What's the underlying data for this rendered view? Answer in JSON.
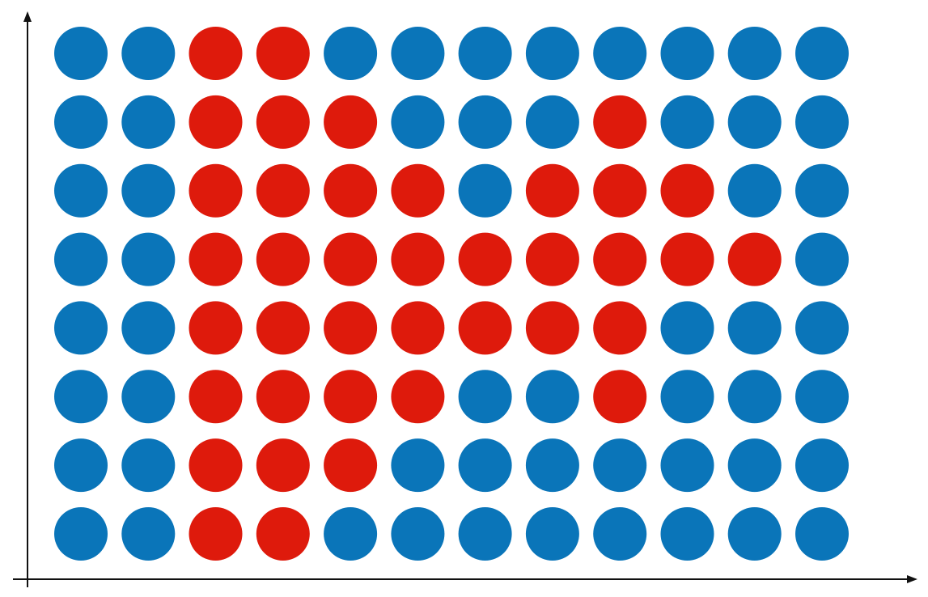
{
  "chart_data": {
    "type": "scatter",
    "title": "",
    "xlabel": "",
    "ylabel": "",
    "grid": false,
    "legend": "none",
    "colors": {
      "blue": "#0a75b9",
      "red": "#de1a0c",
      "axis": "#111111"
    },
    "rows_top_to_bottom": [
      [
        "blue",
        "blue",
        "red",
        "red",
        "blue",
        "blue",
        "blue",
        "blue",
        "blue",
        "blue",
        "blue",
        "blue"
      ],
      [
        "blue",
        "blue",
        "red",
        "red",
        "red",
        "blue",
        "blue",
        "blue",
        "red",
        "blue",
        "blue",
        "blue"
      ],
      [
        "blue",
        "blue",
        "red",
        "red",
        "red",
        "red",
        "blue",
        "red",
        "red",
        "red",
        "blue",
        "blue"
      ],
      [
        "blue",
        "blue",
        "red",
        "red",
        "red",
        "red",
        "red",
        "red",
        "red",
        "red",
        "red",
        "blue"
      ],
      [
        "blue",
        "blue",
        "red",
        "red",
        "red",
        "red",
        "red",
        "red",
        "red",
        "blue",
        "blue",
        "blue"
      ],
      [
        "blue",
        "blue",
        "red",
        "red",
        "red",
        "red",
        "blue",
        "blue",
        "red",
        "blue",
        "blue",
        "blue"
      ],
      [
        "blue",
        "blue",
        "red",
        "red",
        "red",
        "blue",
        "blue",
        "blue",
        "blue",
        "blue",
        "blue",
        "blue"
      ],
      [
        "blue",
        "blue",
        "red",
        "red",
        "blue",
        "blue",
        "blue",
        "blue",
        "blue",
        "blue",
        "blue",
        "blue"
      ]
    ]
  }
}
